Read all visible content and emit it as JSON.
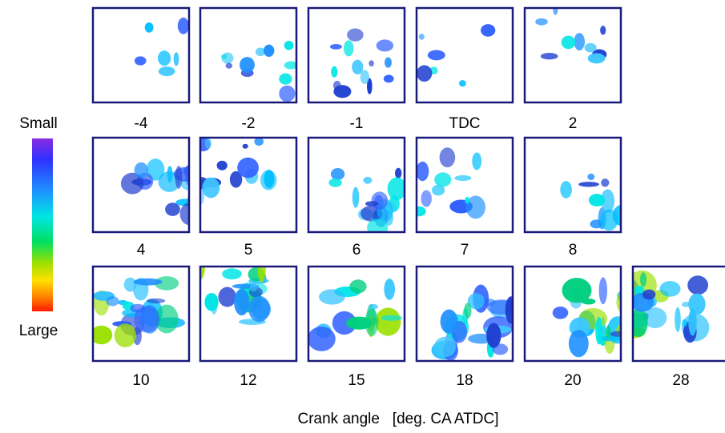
{
  "legend": {
    "top": "Small",
    "bottom": "Large"
  },
  "rows": [
    [
      "-4",
      "-2",
      "-1",
      "TDC",
      "2"
    ],
    [
      "4",
      "5",
      "6",
      "7",
      "8"
    ],
    [
      "10",
      "12",
      "15",
      "18",
      "20",
      "28"
    ]
  ],
  "x_label": "Crank angle   [deg. CA ATDC]"
}
